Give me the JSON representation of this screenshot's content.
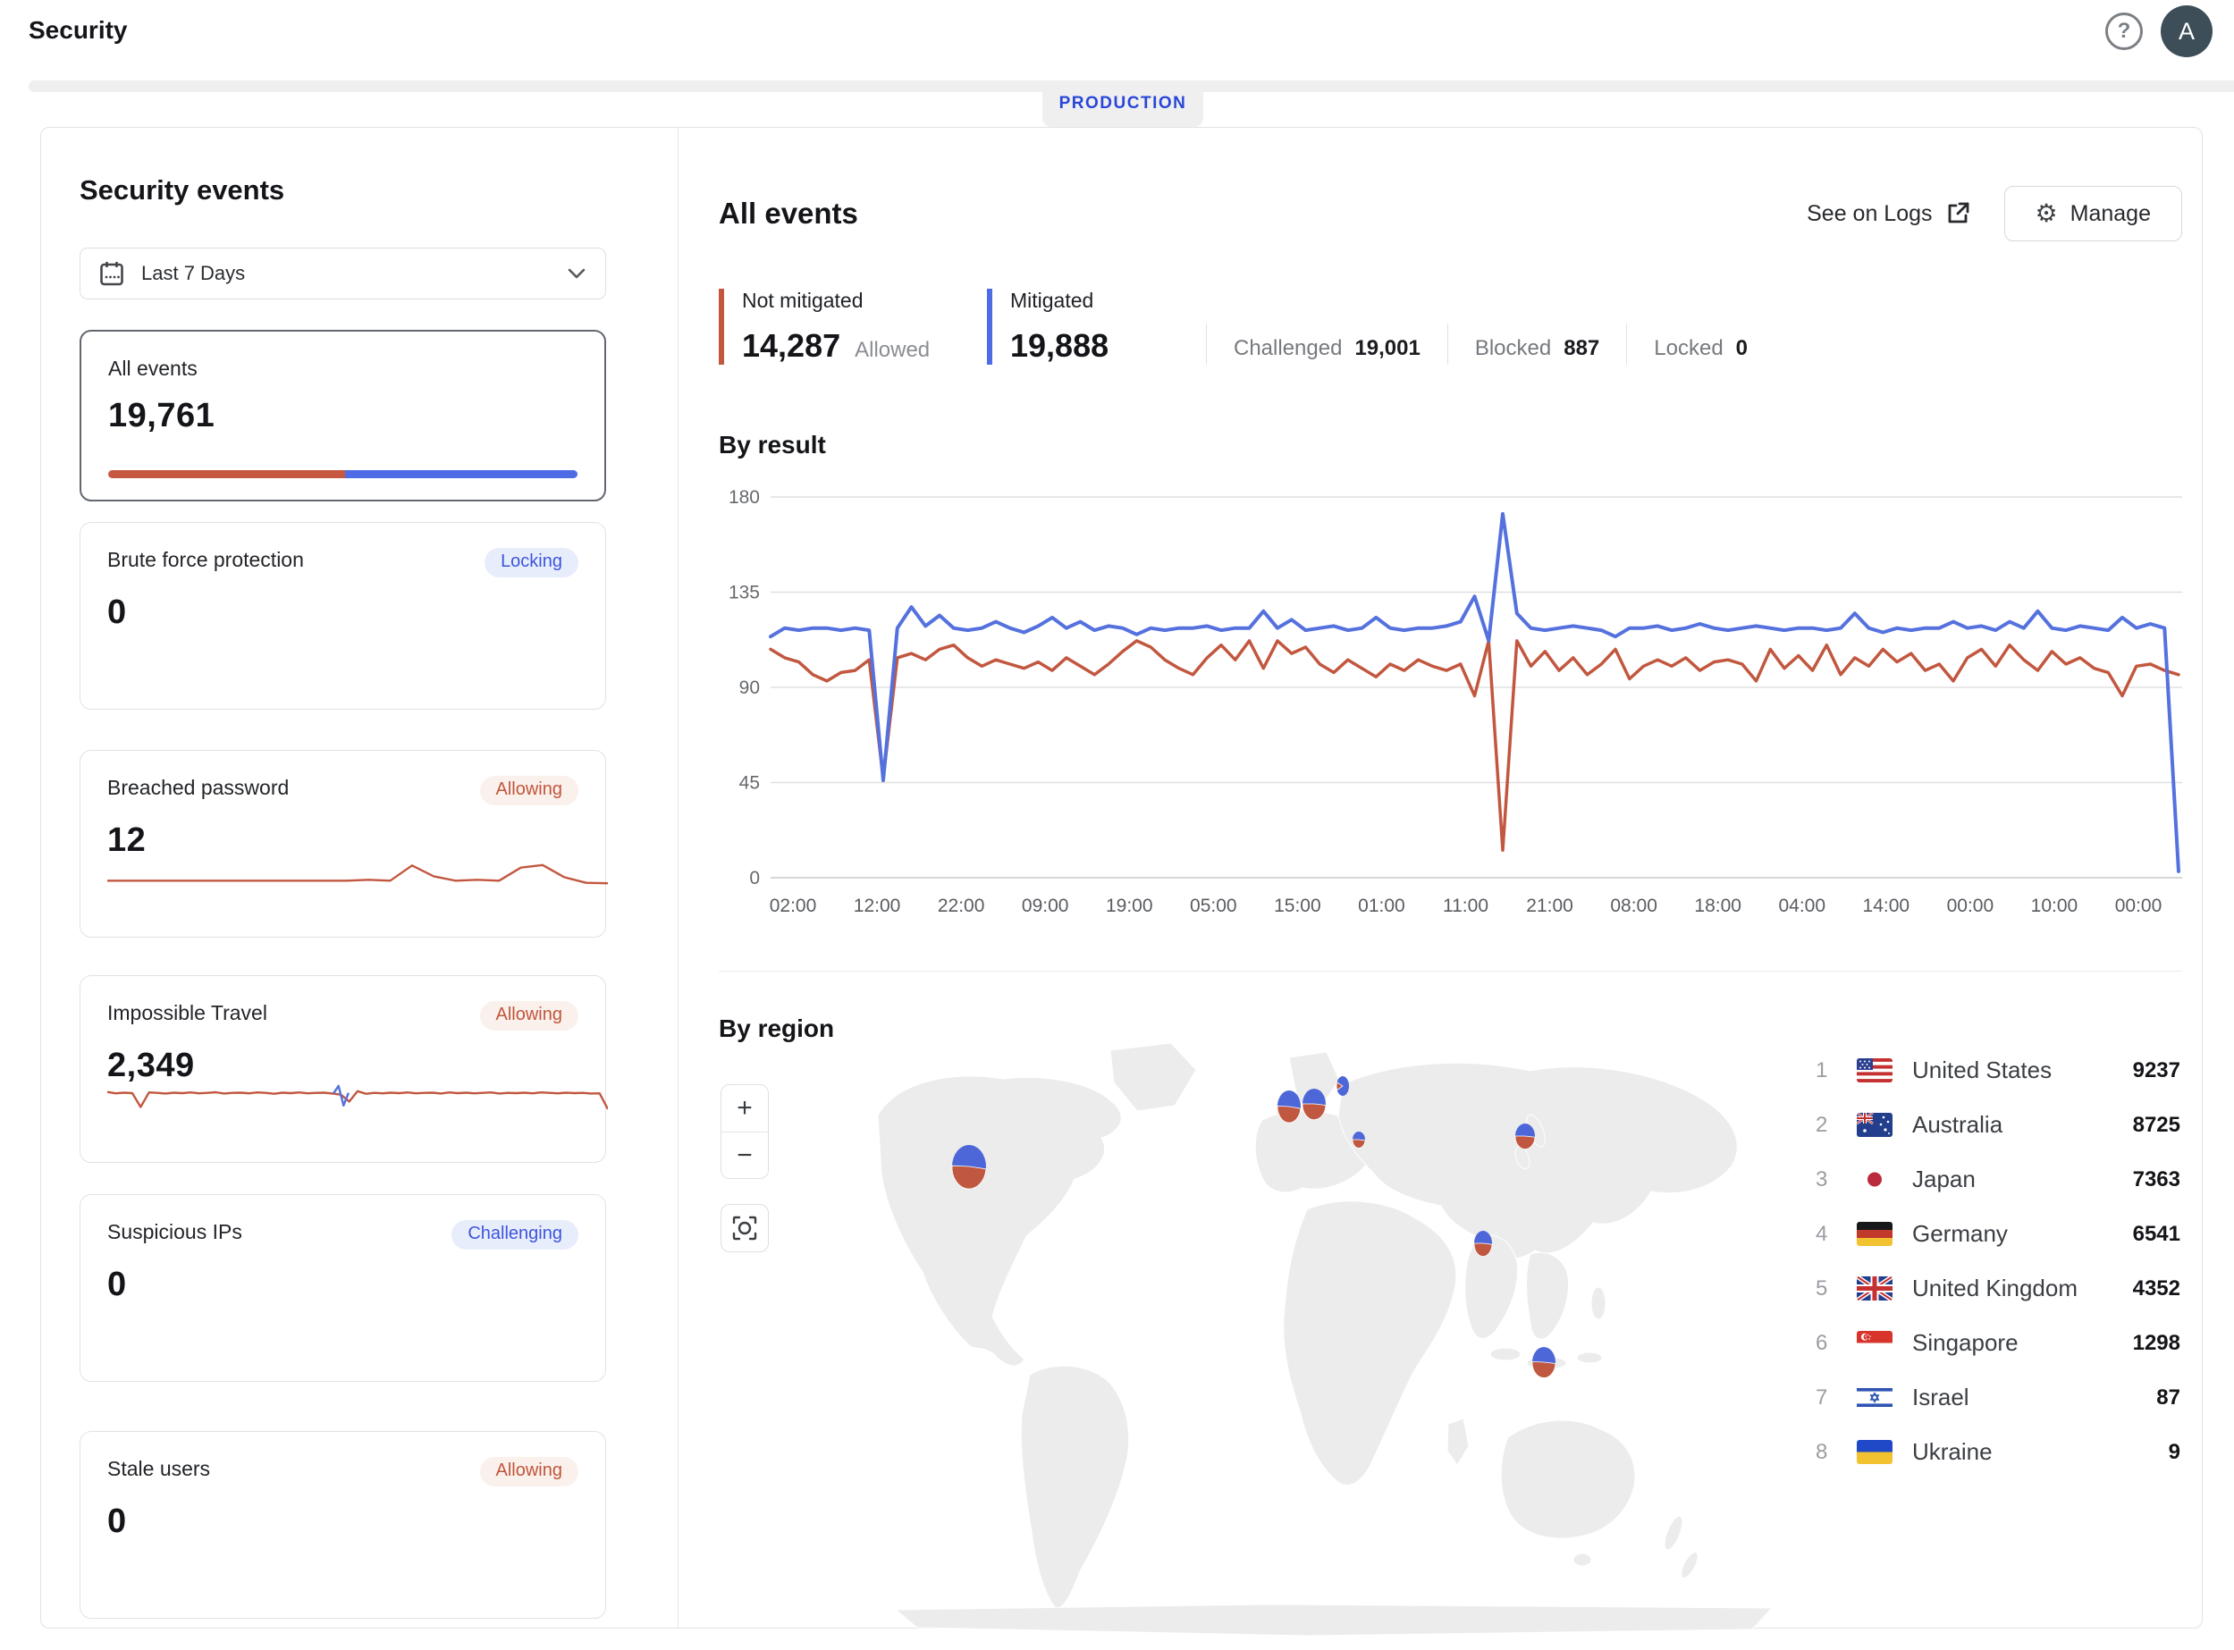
{
  "header": {
    "title": "Security",
    "help_glyph": "?",
    "avatar_initial": "A"
  },
  "env": {
    "label": "PRODUCTION"
  },
  "sidebar": {
    "title": "Security events",
    "date_range": "Last 7 Days",
    "cards": [
      {
        "label": "All events",
        "value": "19,761",
        "red_share": 0.504,
        "selected": true
      },
      {
        "label": "Brute force protection",
        "badge": "Locking",
        "badge_type": "blue",
        "value": "0"
      },
      {
        "label": "Breached password",
        "badge": "Allowing",
        "badge_type": "red",
        "value": "12"
      },
      {
        "label": "Impossible Travel",
        "badge": "Allowing",
        "badge_type": "red",
        "value": "2,349"
      },
      {
        "label": "Suspicious IPs",
        "badge": "Challenging",
        "badge_type": "blue",
        "value": "0"
      },
      {
        "label": "Stale users",
        "badge": "Allowing",
        "badge_type": "red",
        "value": "0"
      }
    ]
  },
  "main": {
    "title": "All events",
    "see_on_logs": "See on Logs",
    "manage_label": "Manage",
    "gear_glyph": "⚙",
    "stats": {
      "not_mitigated": {
        "label": "Not mitigated",
        "value": "14,287",
        "sub": "Allowed"
      },
      "mitigated": {
        "label": "Mitigated",
        "value": "19,888"
      },
      "secondary": [
        {
          "label": "Challenged",
          "value": "19,001"
        },
        {
          "label": "Blocked",
          "value": "887"
        },
        {
          "label": "Locked",
          "value": "0"
        }
      ]
    },
    "by_result_title": "By result",
    "by_region_title": "By region",
    "zoom_in": "+",
    "zoom_out": "−"
  },
  "colors": {
    "line_blue": "#5571DE",
    "line_red": "#C2573F",
    "pie_blue": "#4D67D8",
    "pie_red": "#C05740",
    "grid": "#E0E0E0",
    "grid_zero": "#C8C8C8",
    "axis_text": "#66696D",
    "land": "#ECECEC"
  },
  "chart_data": [
    {
      "id": "by-result",
      "type": "line",
      "title": "By result",
      "ylim": [
        0,
        180
      ],
      "yticks": [
        0,
        45,
        90,
        135,
        180
      ],
      "xticks": [
        "02:00",
        "12:00",
        "22:00",
        "09:00",
        "19:00",
        "05:00",
        "15:00",
        "01:00",
        "11:00",
        "21:00",
        "08:00",
        "18:00",
        "04:00",
        "14:00",
        "00:00",
        "10:00",
        "00:00"
      ],
      "legend_position": "none",
      "grid": true,
      "series": [
        {
          "name": "Mitigated",
          "color": "#5571DE",
          "values": [
            114,
            118,
            117,
            118,
            118,
            117,
            118,
            117,
            46,
            118,
            128,
            119,
            124,
            118,
            117,
            118,
            121,
            118,
            116,
            119,
            123,
            118,
            121,
            117,
            119,
            118,
            115,
            118,
            117,
            118,
            118,
            119,
            117,
            118,
            118,
            126,
            118,
            122,
            117,
            118,
            119,
            117,
            118,
            123,
            118,
            117,
            118,
            118,
            119,
            121,
            133,
            112,
            172,
            125,
            118,
            117,
            118,
            119,
            118,
            117,
            114,
            118,
            118,
            119,
            117,
            118,
            120,
            118,
            117,
            118,
            119,
            118,
            117,
            118,
            118,
            117,
            118,
            125,
            118,
            116,
            118,
            117,
            118,
            118,
            121,
            118,
            119,
            117,
            121,
            118,
            126,
            118,
            117,
            119,
            118,
            117,
            123,
            118,
            120,
            118,
            3
          ]
        },
        {
          "name": "Not mitigated",
          "color": "#C2573F",
          "values": [
            108,
            104,
            102,
            96,
            93,
            97,
            98,
            103,
            47,
            104,
            106,
            103,
            108,
            110,
            104,
            100,
            103,
            101,
            99,
            102,
            98,
            104,
            100,
            96,
            101,
            107,
            112,
            109,
            103,
            99,
            96,
            104,
            110,
            103,
            112,
            99,
            112,
            106,
            109,
            101,
            97,
            103,
            99,
            95,
            101,
            98,
            103,
            100,
            98,
            101,
            86,
            112,
            13,
            112,
            100,
            107,
            98,
            104,
            96,
            101,
            108,
            94,
            100,
            103,
            100,
            104,
            98,
            102,
            103,
            101,
            93,
            108,
            99,
            105,
            98,
            110,
            96,
            104,
            100,
            108,
            102,
            106,
            98,
            101,
            93,
            104,
            108,
            100,
            110,
            103,
            98,
            107,
            101,
            104,
            99,
            97,
            86,
            100,
            101,
            98,
            96
          ]
        }
      ]
    },
    {
      "id": "breached-password-sparkline",
      "type": "line",
      "color": "#C2573F",
      "ymax": 7,
      "values": [
        2,
        2,
        2,
        2,
        2,
        2,
        2,
        2,
        2,
        2,
        2,
        2,
        2.2,
        2,
        5.5,
        3,
        2,
        2.2,
        2,
        5,
        5.6,
        2.8,
        1.5,
        1.4
      ]
    },
    {
      "id": "impossible-travel-sparkline",
      "type": "line",
      "color": "#C2573F",
      "ymax": 14,
      "values": [
        10.4,
        9.8,
        10.1,
        9.9,
        3.5,
        10.2,
        10,
        9.7,
        10.1,
        9.9,
        10.2,
        9.8,
        10,
        10.3,
        9.7,
        10,
        10.1,
        9.8,
        10.2,
        10,
        9.6,
        10.1,
        9.9,
        10.2,
        9.8,
        10,
        10.1,
        9.7,
        9.2,
        6,
        10.8,
        9.6,
        10,
        9.8,
        10.1,
        9.9,
        10.2,
        9.8,
        10,
        10.1,
        9.7,
        10.2,
        9.9,
        10.1,
        9.8,
        10,
        10.2,
        9.7,
        10,
        9.9,
        10.1,
        9.8,
        10.2,
        10,
        9.8,
        10.1,
        9.9,
        10,
        9.7,
        9.8,
        2.5
      ],
      "blip_color": "#5571DE",
      "blip_x": [
        0.452,
        0.462,
        0.472,
        0.482
      ],
      "blip_values": [
        9.8,
        13.2,
        4.2,
        10
      ]
    },
    {
      "id": "by-region-map",
      "type": "map",
      "regions": [
        {
          "rank": 1,
          "country": "United States",
          "value": 9237,
          "marker": {
            "x": 142,
            "y": 152,
            "rx": 19,
            "ry": 24,
            "red_a0": 97,
            "red_a1": 272
          }
        },
        {
          "rank": 2,
          "country": "Australia",
          "value": 8725,
          "marker": {
            "x": 785,
            "y": 371,
            "rx": 13,
            "ry": 17,
            "red_a0": 95,
            "red_a1": 272
          }
        },
        {
          "rank": 3,
          "country": "Japan",
          "value": 7363,
          "marker": {
            "x": 764,
            "y": 118,
            "rx": 11,
            "ry": 14,
            "red_a0": 95,
            "red_a1": 270
          }
        },
        {
          "rank": 4,
          "country": "Germany",
          "value": 6541,
          "marker": {
            "x": 528,
            "y": 82,
            "rx": 13,
            "ry": 17,
            "red_a0": 95,
            "red_a1": 270
          }
        },
        {
          "rank": 5,
          "country": "United Kingdom",
          "value": 4352,
          "marker": {
            "x": 500,
            "y": 85,
            "rx": 13,
            "ry": 18,
            "red_a0": 97,
            "red_a1": 272
          }
        },
        {
          "rank": 6,
          "country": "Singapore",
          "value": 1298,
          "marker": {
            "x": 717,
            "y": 238,
            "rx": 10,
            "ry": 14,
            "red_a0": 95,
            "red_a1": 270
          }
        },
        {
          "rank": 7,
          "country": "Israel",
          "value": 87,
          "marker": {
            "x": 578,
            "y": 122,
            "rx": 7,
            "ry": 9,
            "red_a0": 95,
            "red_a1": 270
          }
        },
        {
          "rank": 8,
          "country": "Ukraine",
          "value": 9,
          "marker": {
            "x": 560,
            "y": 62,
            "rx": 7,
            "ry": 11,
            "red_a0": 245,
            "red_a1": 292
          }
        }
      ]
    }
  ]
}
